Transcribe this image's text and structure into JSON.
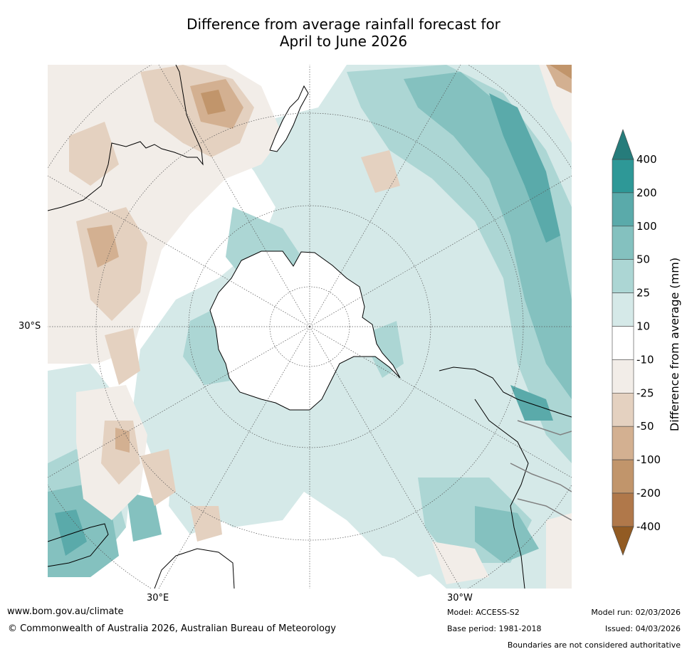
{
  "title_line1": "Difference from average rainfall forecast for",
  "title_line2": "April to June 2026",
  "axis_labels": {
    "lat": "30°S",
    "lon_e": "30°E",
    "lon_w": "30°W"
  },
  "colorbar": {
    "label": "Difference from average (mm)",
    "ticks": [
      "400",
      "200",
      "100",
      "50",
      "25",
      "10",
      "-10",
      "-25",
      "-50",
      "-100",
      "-200",
      "-400"
    ],
    "colors_top_to_bottom": [
      "#2e9897",
      "#5aaaaa",
      "#84c1bf",
      "#acd6d4",
      "#d5e9e8",
      "#ffffff",
      "#f2ede8",
      "#e4d1c0",
      "#d3b091",
      "#c1956b",
      "#b0784a"
    ],
    "over_color": "#267c7b",
    "under_color": "#925b23"
  },
  "footer": {
    "website": "www.bom.gov.au/climate",
    "copyright": "© Commonwealth of Australia 2026, Australian Bureau of Meteorology",
    "model": "Model: ACCESS-S2",
    "base_period": "Base period: 1981-2018",
    "model_run": "Model run: 02/03/2026",
    "issued": "Issued: 04/03/2026",
    "boundaries": "Boundaries are not considered authoritative"
  },
  "colors": {
    "coast": "#000000",
    "border": "#808080",
    "grid": "#555555"
  }
}
